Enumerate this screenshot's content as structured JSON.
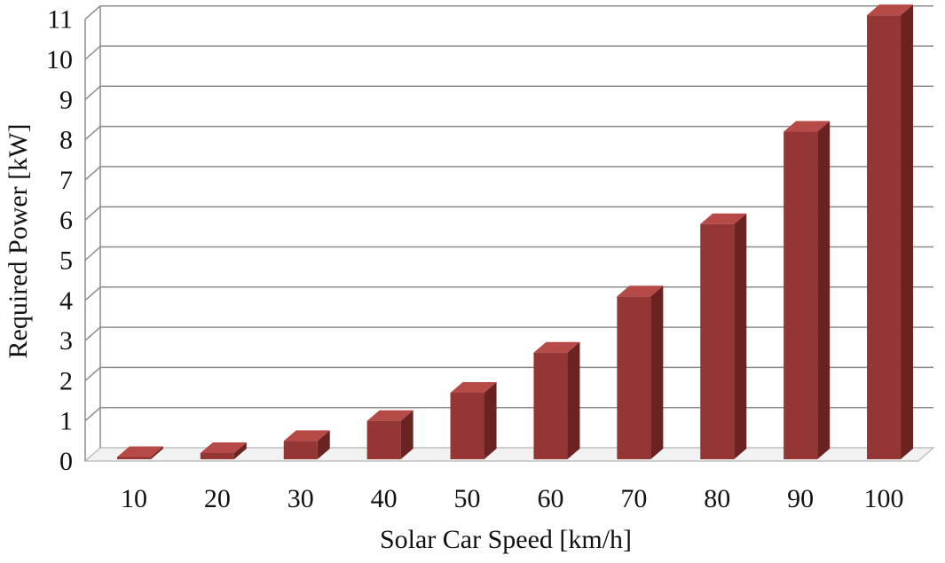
{
  "chart_data": {
    "type": "bar",
    "style": "3d-column",
    "categories": [
      "10",
      "20",
      "30",
      "40",
      "50",
      "60",
      "70",
      "80",
      "90",
      "100"
    ],
    "values": [
      0.1,
      0.2,
      0.5,
      1.0,
      1.7,
      2.7,
      4.1,
      5.9,
      8.2,
      11.1
    ],
    "xlabel": "Solar Car Speed [km/h]",
    "ylabel": "Required Power [kW]",
    "ylim": [
      0,
      11
    ],
    "yticks": [
      "0",
      "1",
      "2",
      "3",
      "4",
      "5",
      "6",
      "7",
      "8",
      "9",
      "10",
      "11"
    ],
    "grid": true,
    "legend": "none",
    "colors": {
      "bar_front": "#943634",
      "bar_side": "#6b2321",
      "bar_top": "#b54a47",
      "grid": "#8c8c8c",
      "floor": "#bfbfbf"
    }
  }
}
